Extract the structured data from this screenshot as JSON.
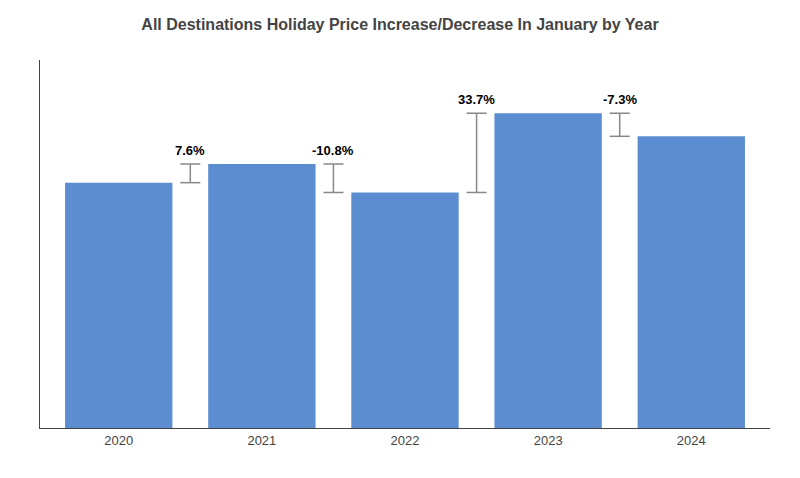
{
  "chart_data": {
    "type": "bar",
    "title": "All Destinations Holiday Price Increase/Decrease In January by Year",
    "categories": [
      "2020",
      "2021",
      "2022",
      "2023",
      "2024"
    ],
    "values": [
      100,
      107.6,
      96.0,
      128.3,
      118.9
    ],
    "color": "#5B8DD0",
    "changes": {
      "labels": [
        null,
        "7.6%",
        "-10.8%",
        "33.7%",
        "-7.3%"
      ],
      "color": "#888888"
    },
    "ylim": [
      0,
      150
    ],
    "grid": false,
    "tick_labels": "x"
  }
}
